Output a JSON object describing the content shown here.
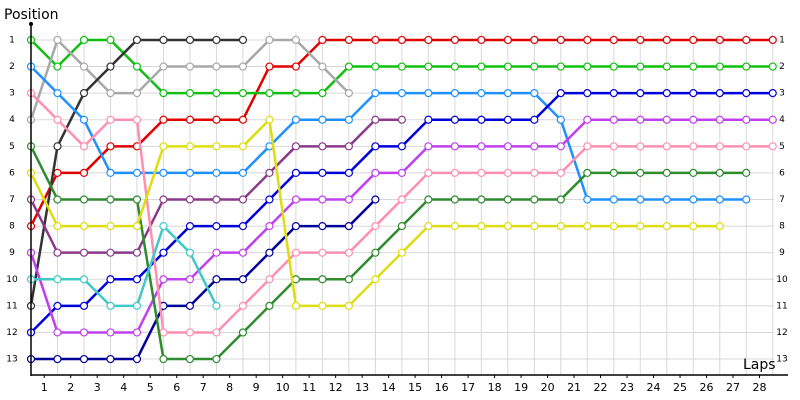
{
  "chart_data": {
    "type": "line",
    "y_label": "Position",
    "x_label": "Laps",
    "x": [
      0,
      1,
      2,
      3,
      4,
      5,
      6,
      7,
      8,
      9,
      10,
      11,
      12,
      13,
      14,
      15,
      16,
      17,
      18,
      19,
      20,
      21,
      22,
      23,
      24,
      25,
      26,
      27,
      28
    ],
    "xlim": [
      0,
      28.5
    ],
    "xticks": [
      {
        "value": 0.5,
        "label": "1"
      },
      {
        "value": 1.5,
        "label": "2"
      },
      {
        "value": 2.5,
        "label": "3"
      },
      {
        "value": 3.5,
        "label": "4"
      },
      {
        "value": 4.5,
        "label": "5"
      },
      {
        "value": 5.5,
        "label": "6"
      },
      {
        "value": 6.5,
        "label": "7"
      },
      {
        "value": 7.5,
        "label": "8"
      },
      {
        "value": 8.5,
        "label": "9"
      },
      {
        "value": 9.5,
        "label": "10"
      },
      {
        "value": 10.5,
        "label": "11"
      },
      {
        "value": 11.5,
        "label": "12"
      },
      {
        "value": 12.5,
        "label": "13"
      },
      {
        "value": 13.5,
        "label": "14"
      },
      {
        "value": 14.5,
        "label": "15"
      },
      {
        "value": 15.5,
        "label": "16"
      },
      {
        "value": 16.5,
        "label": "17"
      },
      {
        "value": 17.5,
        "label": "18"
      },
      {
        "value": 18.5,
        "label": "19"
      },
      {
        "value": 19.5,
        "label": "20"
      },
      {
        "value": 20.5,
        "label": "21"
      },
      {
        "value": 21.5,
        "label": "22"
      },
      {
        "value": 22.5,
        "label": "23"
      },
      {
        "value": 23.5,
        "label": "24"
      },
      {
        "value": 24.5,
        "label": "25"
      },
      {
        "value": 25.5,
        "label": "26"
      },
      {
        "value": 26.5,
        "label": "27"
      },
      {
        "value": 27.5,
        "label": "28"
      }
    ],
    "ylim": [
      13.6,
      0.4
    ],
    "yticks": [
      1,
      2,
      3,
      4,
      5,
      6,
      7,
      8,
      9,
      10,
      11,
      12,
      13
    ],
    "grid": true,
    "series": [
      {
        "color": "#e00000",
        "values": [
          8,
          6,
          6,
          5,
          5,
          4,
          4,
          4,
          4,
          2,
          2,
          1,
          1,
          1,
          1,
          1,
          1,
          1,
          1,
          1,
          1,
          1,
          1,
          1,
          1,
          1,
          1,
          1,
          1
        ]
      },
      {
        "color": "#10c010",
        "values": [
          1,
          2,
          1,
          1,
          2,
          3,
          3,
          3,
          3,
          3,
          3,
          3,
          2,
          2,
          2,
          2,
          2,
          2,
          2,
          2,
          2,
          2,
          2,
          2,
          2,
          2,
          2,
          2,
          2
        ]
      },
      {
        "color": "#a8a8a8",
        "values": [
          4,
          1,
          2,
          3,
          3,
          2,
          2,
          2,
          2,
          1,
          1,
          2,
          3,
          null,
          null,
          null,
          null,
          null,
          null,
          null,
          null,
          null,
          null,
          null,
          null,
          null,
          null,
          null,
          null
        ]
      },
      {
        "color": "#333333",
        "values": [
          11,
          5,
          3,
          2,
          1,
          1,
          1,
          1,
          1,
          null,
          null,
          null,
          null,
          null,
          null,
          null,
          null,
          null,
          null,
          null,
          null,
          null,
          null,
          null,
          null,
          null,
          null,
          null,
          null
        ]
      },
      {
        "color": "#1e90ff",
        "values": [
          2,
          3,
          4,
          6,
          6,
          6,
          6,
          6,
          6,
          5,
          4,
          4,
          4,
          3,
          3,
          3,
          3,
          3,
          3,
          3,
          4,
          7,
          7,
          7,
          7,
          7,
          7,
          7,
          null
        ]
      },
      {
        "color": "#0000dd",
        "values": [
          12,
          11,
          11,
          10,
          10,
          9,
          8,
          8,
          8,
          7,
          6,
          6,
          6,
          5,
          5,
          4,
          4,
          4,
          4,
          4,
          3,
          3,
          3,
          3,
          3,
          3,
          3,
          3,
          3
        ]
      },
      {
        "color": "#00009a",
        "values": [
          13,
          13,
          13,
          13,
          13,
          11,
          11,
          10,
          10,
          9,
          8,
          8,
          8,
          7,
          null,
          null,
          null,
          null,
          null,
          null,
          null,
          null,
          null,
          null,
          null,
          null,
          null,
          null,
          null
        ]
      },
      {
        "color": "#c040f0",
        "values": [
          9,
          12,
          12,
          12,
          12,
          10,
          10,
          9,
          9,
          8,
          7,
          7,
          7,
          6,
          6,
          5,
          5,
          5,
          5,
          5,
          5,
          4,
          4,
          4,
          4,
          4,
          4,
          4,
          4
        ]
      },
      {
        "color": "#8b3a8b",
        "values": [
          7,
          9,
          9,
          9,
          9,
          7,
          7,
          7,
          7,
          6,
          5,
          5,
          5,
          4,
          4,
          null,
          null,
          null,
          null,
          null,
          null,
          null,
          null,
          null,
          null,
          null,
          null,
          null,
          null
        ]
      },
      {
        "color": "#ff8fb0",
        "values": [
          3,
          4,
          5,
          4,
          4,
          12,
          12,
          12,
          11,
          10,
          9,
          9,
          9,
          8,
          7,
          6,
          6,
          6,
          6,
          6,
          6,
          5,
          5,
          5,
          5,
          5,
          5,
          5,
          5
        ]
      },
      {
        "color": "#2e8b2e",
        "values": [
          5,
          7,
          7,
          7,
          7,
          13,
          13,
          13,
          12,
          11,
          10,
          10,
          10,
          9,
          8,
          7,
          7,
          7,
          7,
          7,
          7,
          6,
          6,
          6,
          6,
          6,
          6,
          6,
          null
        ]
      },
      {
        "color": "#dddd10",
        "values": [
          6,
          8,
          8,
          8,
          8,
          5,
          5,
          5,
          5,
          4,
          11,
          11,
          11,
          10,
          9,
          8,
          8,
          8,
          8,
          8,
          8,
          8,
          8,
          8,
          8,
          8,
          8,
          null,
          null
        ]
      },
      {
        "color": "#40c8c8",
        "values": [
          10,
          10,
          10,
          11,
          11,
          8,
          9,
          11,
          null,
          null,
          null,
          null,
          null,
          null,
          null,
          null,
          null,
          null,
          null,
          null,
          null,
          null,
          null,
          null,
          null,
          null,
          null,
          null,
          null
        ]
      }
    ]
  }
}
